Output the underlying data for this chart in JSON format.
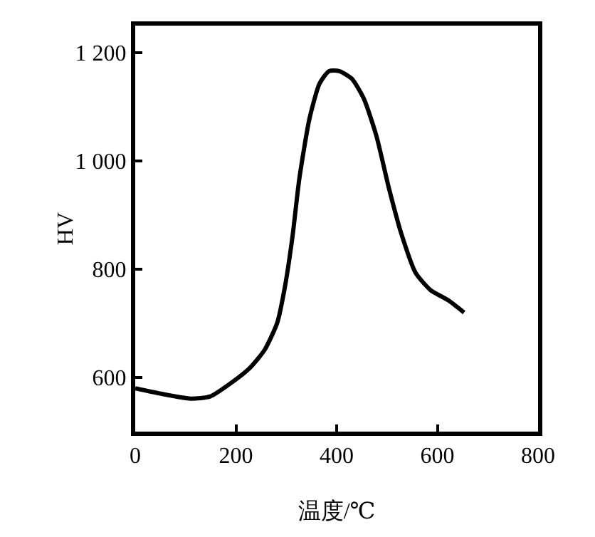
{
  "chart_data": {
    "type": "line",
    "xlabel": "温度/℃",
    "ylabel": "HV",
    "x": [
      0,
      51,
      110,
      149,
      189,
      228,
      257,
      282,
      297,
      312,
      326,
      346,
      366,
      385,
      405,
      430,
      454,
      479,
      504,
      528,
      557,
      587,
      621,
      653
    ],
    "series": [
      {
        "color": "#000000",
        "values": [
          580,
          570,
          561,
          565,
          589,
          618,
          651,
          701,
          766,
          858,
          968,
          1078,
          1143,
          1166,
          1166,
          1152,
          1115,
          1046,
          949,
          867,
          793,
          761,
          743,
          720
        ]
      }
    ],
    "xlim": [
      0,
      800
    ],
    "xticks": [
      0,
      200,
      400,
      600,
      800
    ],
    "ylim": [
      500,
      1250
    ],
    "yticks": [
      600,
      800,
      {
        "value": 1000,
        "label": "1 000"
      },
      {
        "value": 1200,
        "label": "1 200"
      }
    ],
    "marker": "none",
    "line_style": "solid"
  }
}
